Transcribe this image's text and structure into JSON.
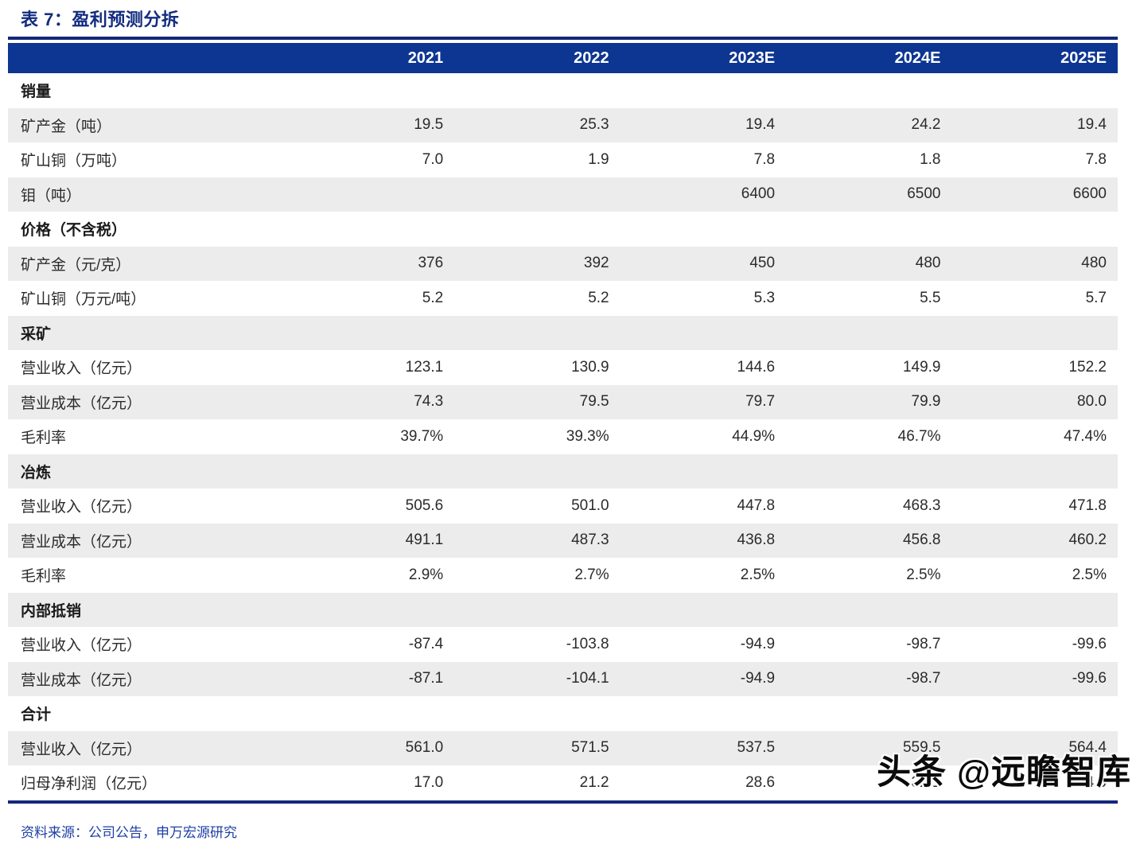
{
  "title": "表 7：盈利预测分拆",
  "table": {
    "columns": [
      "",
      "2021",
      "2022",
      "2023E",
      "2024E",
      "2025E"
    ],
    "rows": [
      {
        "label": "销量",
        "type": "section",
        "values": [
          "",
          "",
          "",
          "",
          ""
        ]
      },
      {
        "label": "矿产金（吨）",
        "type": "data",
        "values": [
          "19.5",
          "25.3",
          "19.4",
          "24.2",
          "19.4"
        ]
      },
      {
        "label": "矿山铜（万吨）",
        "type": "data",
        "values": [
          "7.0",
          "1.9",
          "7.8",
          "1.8",
          "7.8"
        ]
      },
      {
        "label": "钼（吨）",
        "type": "data",
        "values": [
          "",
          "",
          "6400",
          "6500",
          "6600"
        ]
      },
      {
        "label": "价格（不含税）",
        "type": "section",
        "values": [
          "",
          "",
          "",
          "",
          ""
        ]
      },
      {
        "label": "矿产金（元/克）",
        "type": "data",
        "values": [
          "376",
          "392",
          "450",
          "480",
          "480"
        ]
      },
      {
        "label": "矿山铜（万元/吨）",
        "type": "data",
        "values": [
          "5.2",
          "5.2",
          "5.3",
          "5.5",
          "5.7"
        ]
      },
      {
        "label": "采矿",
        "type": "section",
        "values": [
          "",
          "",
          "",
          "",
          ""
        ]
      },
      {
        "label": "营业收入（亿元）",
        "type": "data",
        "values": [
          "123.1",
          "130.9",
          "144.6",
          "149.9",
          "152.2"
        ]
      },
      {
        "label": "营业成本（亿元）",
        "type": "data",
        "values": [
          "74.3",
          "79.5",
          "79.7",
          "79.9",
          "80.0"
        ]
      },
      {
        "label": "毛利率",
        "type": "data",
        "values": [
          "39.7%",
          "39.3%",
          "44.9%",
          "46.7%",
          "47.4%"
        ]
      },
      {
        "label": "冶炼",
        "type": "section",
        "values": [
          "",
          "",
          "",
          "",
          ""
        ]
      },
      {
        "label": "营业收入（亿元）",
        "type": "data",
        "values": [
          "505.6",
          "501.0",
          "447.8",
          "468.3",
          "471.8"
        ]
      },
      {
        "label": "营业成本（亿元）",
        "type": "data",
        "values": [
          "491.1",
          "487.3",
          "436.8",
          "456.8",
          "460.2"
        ]
      },
      {
        "label": "毛利率",
        "type": "data",
        "values": [
          "2.9%",
          "2.7%",
          "2.5%",
          "2.5%",
          "2.5%"
        ]
      },
      {
        "label": "内部抵销",
        "type": "section",
        "values": [
          "",
          "",
          "",
          "",
          ""
        ]
      },
      {
        "label": "营业收入（亿元）",
        "type": "data",
        "values": [
          "-87.4",
          "-103.8",
          "-94.9",
          "-98.7",
          "-99.6"
        ]
      },
      {
        "label": "营业成本（亿元）",
        "type": "data",
        "values": [
          "-87.1",
          "-104.1",
          "-94.9",
          "-98.7",
          "-99.6"
        ]
      },
      {
        "label": "合计",
        "type": "section",
        "values": [
          "",
          "",
          "",
          "",
          ""
        ]
      },
      {
        "label": "营业收入（亿元）",
        "type": "data",
        "values": [
          "561.0",
          "571.5",
          "537.5",
          "559.5",
          "564.4"
        ]
      },
      {
        "label": "归母净利润（亿元）",
        "type": "data",
        "values": [
          "17.0",
          "21.2",
          "28.6",
          "32.1",
          "34.0"
        ]
      }
    ]
  },
  "footer": {
    "source": "资料来源：公司公告，申万宏源研究"
  },
  "watermark": "头条 @远瞻智库",
  "colors": {
    "header_bg": "#0d3692",
    "title_text": "#132c80",
    "rule": "#15277b",
    "row_shade": "#ececec",
    "footer_text": "#1e40a6",
    "body_text": "#2b2b2b",
    "watermark_text": "#0b0b0b"
  }
}
